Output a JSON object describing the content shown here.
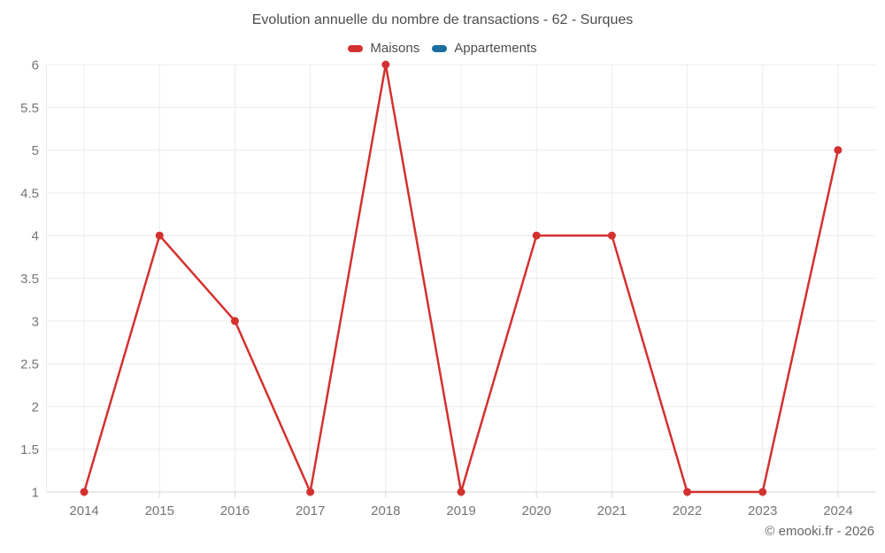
{
  "chart_data": {
    "type": "line",
    "title": "Evolution annuelle du nombre de transactions - 62 - Surques",
    "categories": [
      "2014",
      "2015",
      "2016",
      "2017",
      "2018",
      "2019",
      "2020",
      "2021",
      "2022",
      "2023",
      "2024"
    ],
    "series": [
      {
        "name": "Maisons",
        "color": "#d3312f",
        "values": [
          1,
          4,
          3,
          1,
          6,
          1,
          4,
          4,
          1,
          1,
          5
        ]
      },
      {
        "name": "Appartements",
        "color": "#1c6e9e",
        "values": []
      }
    ],
    "xlabel": "",
    "ylabel": "",
    "ylim": [
      1,
      6
    ],
    "ytick_step": 0.5,
    "yticks": [
      "1",
      "1.5",
      "2",
      "2.5",
      "3",
      "3.5",
      "4",
      "4.5",
      "5",
      "5.5",
      "6"
    ],
    "grid": true,
    "legend_position": "top"
  },
  "footer": {
    "copyright": "© emooki.fr - 2026"
  },
  "colors": {
    "grid_line": "#ececec",
    "axis_line": "#d6d6d6",
    "axis_text": "#757575",
    "title_text": "#4d4d4d"
  }
}
